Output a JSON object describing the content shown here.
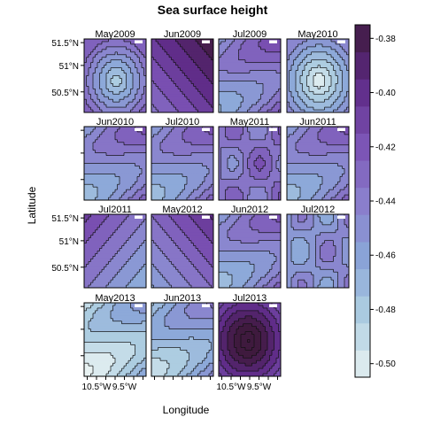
{
  "chart_data": {
    "type": "heatmap",
    "title": "Sea surface height",
    "xlabel": "Longitude",
    "ylabel": "Latitude",
    "x_tick_labels": [
      "10.5°W",
      "9.5°W"
    ],
    "y_tick_labels": [
      "51.5°N",
      "51°N",
      "50.5°N"
    ],
    "panels": [
      {
        "label": "May2009",
        "level": -0.455,
        "pattern": "low-center"
      },
      {
        "label": "Jun2009",
        "level": -0.405,
        "pattern": "high-ne"
      },
      {
        "label": "Jul2009",
        "level": -0.44,
        "pattern": "bands"
      },
      {
        "label": "May2010",
        "level": -0.475,
        "pattern": "low-center"
      },
      {
        "label": "Jun2010",
        "level": -0.445,
        "pattern": "bands"
      },
      {
        "label": "Jul2010",
        "level": -0.445,
        "pattern": "bands"
      },
      {
        "label": "May2011",
        "level": -0.435,
        "pattern": "eddies"
      },
      {
        "label": "Jun2011",
        "level": -0.445,
        "pattern": "bands"
      },
      {
        "label": "Jul2011",
        "level": -0.44,
        "pattern": "high-nw"
      },
      {
        "label": "May2012",
        "level": -0.43,
        "pattern": "high-ne"
      },
      {
        "label": "Jun2012",
        "level": -0.445,
        "pattern": "bands"
      },
      {
        "label": "Jul2012",
        "level": -0.45,
        "pattern": "eddies"
      },
      {
        "label": "May2013",
        "level": -0.48,
        "pattern": "bands"
      },
      {
        "label": "Jun2013",
        "level": -0.465,
        "pattern": "bands"
      },
      {
        "label": "Jul2013",
        "level": -0.385,
        "pattern": "high-center"
      }
    ],
    "colorbar": {
      "min": -0.505,
      "max": -0.375,
      "tick_labels": [
        "-0.38",
        "-0.40",
        "-0.42",
        "-0.44",
        "-0.46",
        "-0.48",
        "-0.50"
      ],
      "ticks": [
        -0.38,
        -0.4,
        -0.42,
        -0.44,
        -0.46,
        -0.48,
        -0.5
      ],
      "colors": [
        "#e8f2f2",
        "#b0d0e2",
        "#8aa6d8",
        "#8a7ecc",
        "#7b52b4",
        "#5e2a86",
        "#3f1a3e"
      ]
    },
    "grid": false,
    "legend": "right"
  }
}
